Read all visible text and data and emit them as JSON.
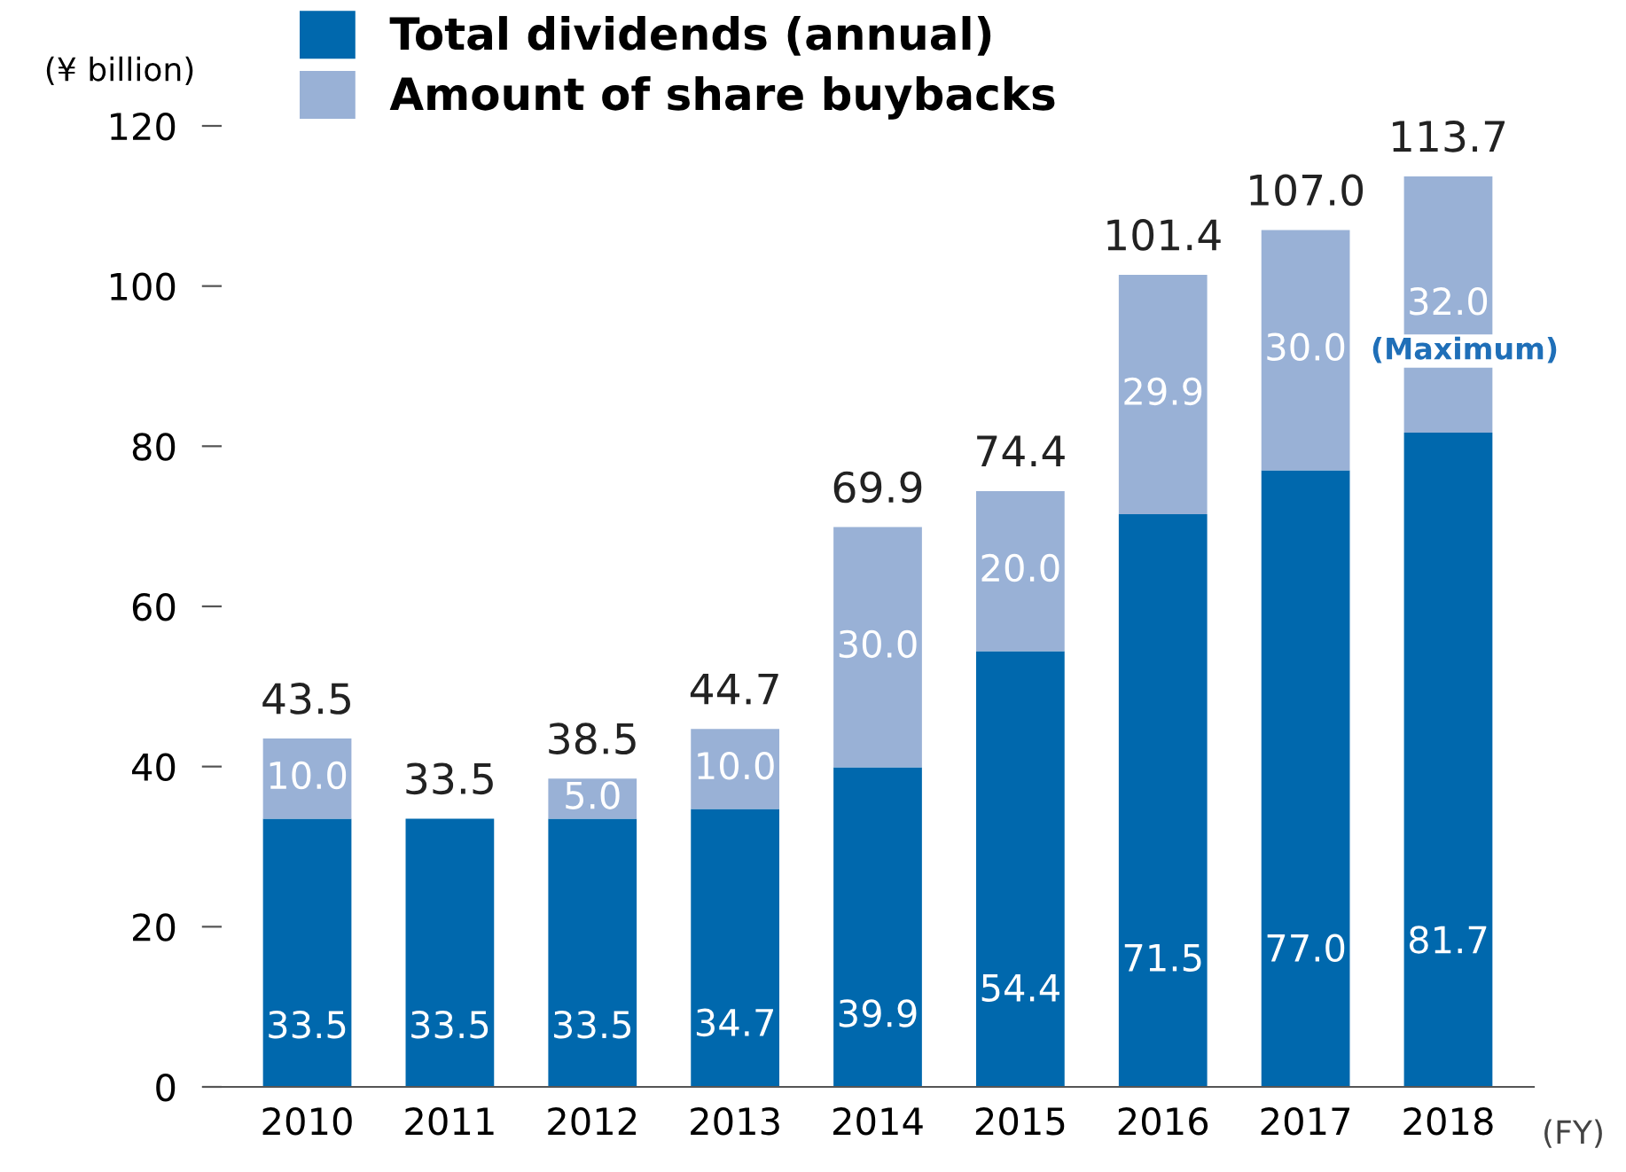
{
  "chart_data": {
    "type": "bar",
    "stacked": true,
    "ylabel": "(¥ billion)",
    "categories": [
      "2010",
      "2011",
      "2012",
      "2013",
      "2014",
      "2015",
      "2016",
      "2017",
      "2018"
    ],
    "series": [
      {
        "name": "Total dividends (annual)",
        "color": "#0068ad",
        "values": [
          33.5,
          33.5,
          33.5,
          34.7,
          39.9,
          54.4,
          71.5,
          77.0,
          81.7
        ],
        "value_labels": [
          "33.5",
          "33.5",
          "33.5",
          "34.7",
          "39.9",
          "54.4",
          "71.5",
          "77.0",
          "81.7"
        ]
      },
      {
        "name": "Amount of share buybacks",
        "color": "#99b1d6",
        "values": [
          10.0,
          null,
          5.0,
          10.0,
          30.0,
          20.0,
          29.9,
          30.0,
          32.0
        ],
        "value_labels": [
          "10.0",
          null,
          "5.0",
          "10.0",
          "30.0",
          "20.0",
          "29.9",
          "30.0",
          "32.0"
        ]
      }
    ],
    "totals": [
      "43.5",
      "33.5",
      "38.5",
      "44.7",
      "69.9",
      "74.4",
      "101.4",
      "107.0",
      "113.7"
    ],
    "ylim": [
      0,
      120
    ],
    "yticks": [
      0,
      20,
      40,
      60,
      80,
      100,
      120
    ],
    "grid": false,
    "legend": "top left",
    "annotations": [
      "(Maximum)",
      "(FY)"
    ]
  }
}
